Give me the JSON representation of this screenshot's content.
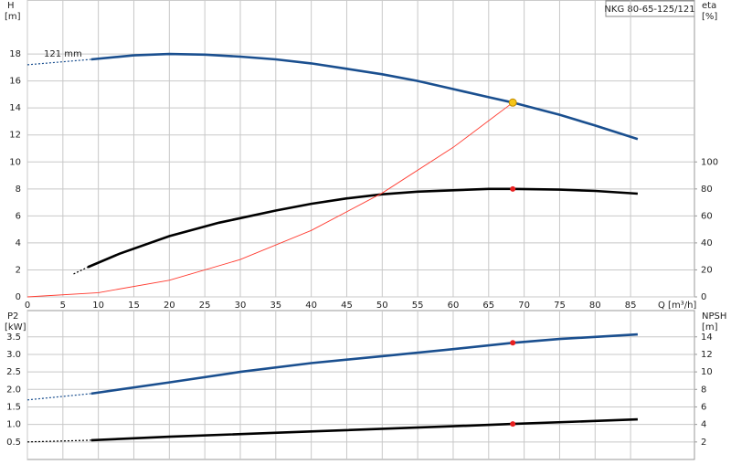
{
  "chart_data": [
    {
      "type": "line",
      "title": "NKG 80-65-125/121",
      "y_label": "H",
      "y_unit": "[m]",
      "y2_label": "eta",
      "y2_unit": "[%]",
      "x_label": "Q [m³/h]",
      "annotation": "121 mm",
      "xlim": [
        0,
        94
      ],
      "xticks": [
        0,
        5,
        10,
        15,
        20,
        25,
        30,
        35,
        40,
        45,
        50,
        55,
        60,
        65,
        70,
        75,
        80,
        85
      ],
      "show_xtick_labels": true,
      "ylim": [
        0,
        22
      ],
      "yticks": [
        0,
        2,
        4,
        6,
        8,
        10,
        12,
        14,
        16,
        18
      ],
      "y2lim": [
        0,
        220
      ],
      "y2ticks": [
        0,
        20,
        40,
        60,
        80,
        100
      ],
      "grid": true,
      "series": [
        {
          "color": "#1a4f8f",
          "style": "dashed",
          "x": [
            0,
            9
          ],
          "values": [
            17.2,
            17.6
          ]
        },
        {
          "color": "#1a4f8f",
          "style": "solid",
          "x": [
            9,
            15,
            20,
            25,
            30,
            35,
            40,
            45,
            50,
            55,
            60,
            65,
            68.4,
            75,
            80,
            86
          ],
          "values": [
            17.6,
            17.9,
            18.0,
            17.95,
            17.8,
            17.6,
            17.3,
            16.9,
            16.5,
            16.0,
            15.4,
            14.8,
            14.4,
            13.5,
            12.7,
            11.7
          ]
        },
        {
          "color": "#000000",
          "style": "dashed",
          "axis": "y2",
          "x": [
            6.5,
            8.5
          ],
          "values": [
            17,
            22
          ]
        },
        {
          "color": "#000000",
          "style": "solid",
          "axis": "y2",
          "x": [
            8.5,
            13,
            20,
            27,
            35,
            40,
            45,
            50,
            55,
            60,
            65,
            68.4,
            75,
            80,
            86
          ],
          "values": [
            22,
            32,
            45,
            55,
            64,
            69,
            73,
            76,
            78,
            79,
            80,
            80,
            79.5,
            78.5,
            76.5
          ]
        },
        {
          "color": "#ff3b30",
          "style": "thin",
          "x": [
            0,
            10,
            20,
            30,
            40,
            50,
            60,
            68.4
          ],
          "values": [
            0,
            0.31,
            1.23,
            2.77,
            4.92,
            7.7,
            11.08,
            14.4
          ]
        },
        {
          "color": "#f5c518",
          "style": "marker",
          "x": [
            68.4
          ],
          "values": [
            14.4
          ]
        },
        {
          "color": "#e82020",
          "style": "marker",
          "axis": "y2",
          "x": [
            68.4
          ],
          "values": [
            80
          ]
        }
      ]
    },
    {
      "type": "line",
      "y_label": "P2",
      "y_unit": "[kW]",
      "y2_label": "NPSH",
      "y2_unit": "[m]",
      "xlim": [
        0,
        94
      ],
      "xticks": [
        0,
        5,
        10,
        15,
        20,
        25,
        30,
        35,
        40,
        45,
        50,
        55,
        60,
        65,
        70,
        75,
        80,
        85
      ],
      "show_xtick_labels": false,
      "ylim": [
        0,
        4.25
      ],
      "yticks": [
        0.5,
        {
          "value": 1.0,
          "label": "1.0"
        },
        1.5,
        {
          "value": 2.0,
          "label": "2.0"
        },
        2.5,
        {
          "value": 3.0,
          "label": "3.0"
        },
        3.5
      ],
      "y2lim": [
        0,
        17
      ],
      "y2ticks": [
        2,
        4,
        6,
        8,
        10,
        12,
        14
      ],
      "grid": true,
      "series": [
        {
          "color": "#1a4f8f",
          "style": "dashed",
          "x": [
            0,
            9
          ],
          "values": [
            1.7,
            1.88
          ]
        },
        {
          "color": "#1a4f8f",
          "style": "solid",
          "x": [
            9,
            20,
            30,
            40,
            50,
            60,
            68.4,
            75,
            86
          ],
          "values": [
            1.88,
            2.2,
            2.5,
            2.75,
            2.95,
            3.15,
            3.33,
            3.44,
            3.57
          ]
        },
        {
          "color": "#000000",
          "style": "dashed",
          "axis": "y2",
          "x": [
            0,
            9
          ],
          "values": [
            2.0,
            2.2
          ]
        },
        {
          "color": "#000000",
          "style": "solid",
          "axis": "y2",
          "x": [
            9,
            20,
            40,
            60,
            68.4,
            86
          ],
          "values": [
            2.2,
            2.6,
            3.2,
            3.8,
            4.06,
            4.58
          ]
        },
        {
          "color": "#e82020",
          "style": "marker",
          "x": [
            68.4
          ],
          "values": [
            3.33
          ]
        },
        {
          "color": "#e82020",
          "style": "marker",
          "axis": "y2",
          "x": [
            68.4
          ],
          "values": [
            4.06
          ]
        }
      ]
    }
  ]
}
